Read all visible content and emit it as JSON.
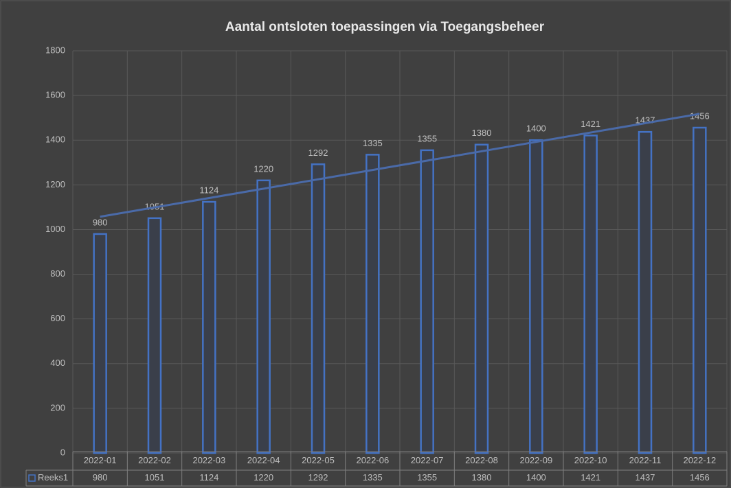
{
  "chart_data": {
    "type": "bar",
    "title": "Aantal ontsloten toepassingen via Toegangsbeheer",
    "categories": [
      "2022-01",
      "2022-02",
      "2022-03",
      "2022-04",
      "2022-05",
      "2022-06",
      "2022-07",
      "2022-08",
      "2022-09",
      "2022-10",
      "2022-11",
      "2022-12"
    ],
    "series": [
      {
        "name": "Reeks1",
        "color": "#4472c4",
        "values": [
          980,
          1051,
          1124,
          1220,
          1292,
          1335,
          1355,
          1380,
          1400,
          1421,
          1437,
          1456
        ]
      }
    ],
    "ylim": [
      0,
      1800
    ],
    "yticks": [
      0,
      200,
      400,
      600,
      800,
      1000,
      1200,
      1400,
      1600,
      1800
    ],
    "grid": true,
    "trendline": "linear",
    "data_table": true
  }
}
